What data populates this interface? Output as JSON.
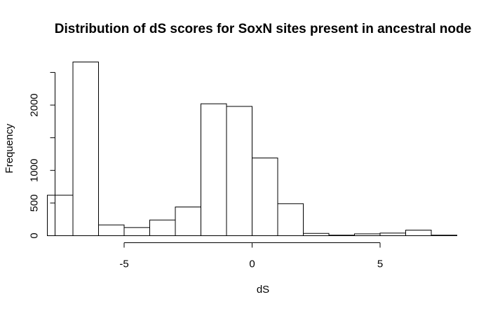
{
  "chart_data": {
    "type": "bar",
    "title": "Distribution of dS scores for SoxN sites present in ancestral node",
    "xlabel": "dS",
    "ylabel": "Frequency",
    "bin_width": 1,
    "bins": [
      {
        "start": -8,
        "end": -7,
        "count": 620
      },
      {
        "start": -7,
        "end": -6,
        "count": 2660
      },
      {
        "start": -6,
        "end": -5,
        "count": 165
      },
      {
        "start": -5,
        "end": -4,
        "count": 125
      },
      {
        "start": -4,
        "end": -3,
        "count": 240
      },
      {
        "start": -3,
        "end": -2,
        "count": 440
      },
      {
        "start": -2,
        "end": -1,
        "count": 2020
      },
      {
        "start": -1,
        "end": 0,
        "count": 1980
      },
      {
        "start": 0,
        "end": 1,
        "count": 1190
      },
      {
        "start": 1,
        "end": 2,
        "count": 490
      },
      {
        "start": 2,
        "end": 3,
        "count": 35
      },
      {
        "start": 3,
        "end": 4,
        "count": 8
      },
      {
        "start": 4,
        "end": 5,
        "count": 28
      },
      {
        "start": 5,
        "end": 6,
        "count": 40
      },
      {
        "start": 6,
        "end": 7,
        "count": 85
      },
      {
        "start": 7,
        "end": 8,
        "count": 8
      }
    ],
    "x_ticks": [
      -5,
      0,
      5
    ],
    "x_tick_labels": [
      "-5",
      "0",
      "5"
    ],
    "x_axis_range": [
      -5,
      5
    ],
    "y_ticks": [
      0,
      500,
      1000,
      1500,
      2000,
      2500
    ],
    "y_tick_labels": [
      "0",
      "500",
      "1000",
      "",
      "2000",
      ""
    ],
    "y_axis_range": [
      0,
      2500
    ],
    "xlim": [
      -8,
      8
    ],
    "ylim": [
      0,
      2660
    ],
    "grid": false,
    "legend": "none"
  }
}
